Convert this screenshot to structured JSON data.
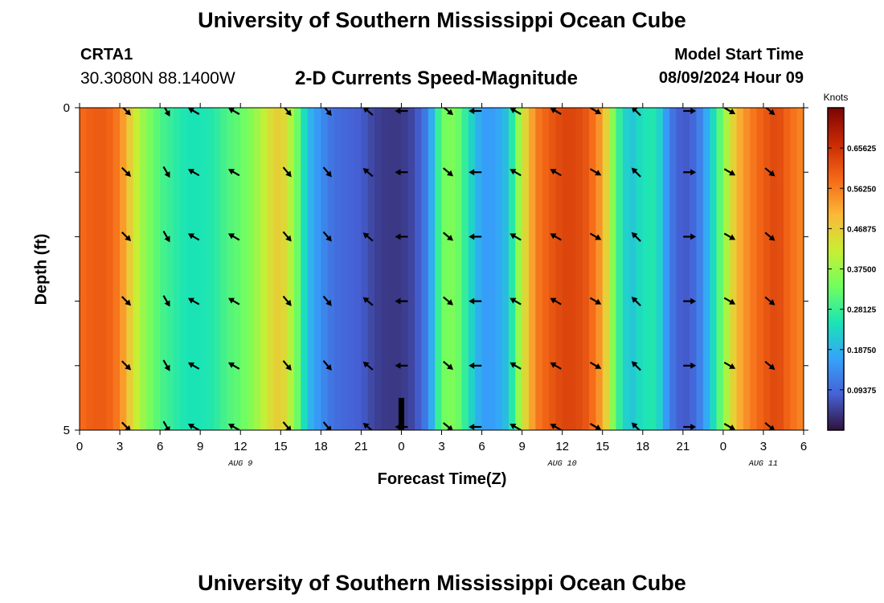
{
  "header": {
    "title_top": "University of Southern Mississippi Ocean Cube",
    "title_bottom": "University of Southern Mississippi Ocean Cube",
    "station": "CRTA1",
    "coords": "30.3080N  88.1400W",
    "model_start_label": "Model Start Time",
    "model_start_value": "08/09/2024 Hour 09"
  },
  "chart_data": {
    "type": "heatmap",
    "title": "2-D Currents Speed-Magnitude",
    "xlabel": "Forecast Time(Z)",
    "ylabel": "Depth (ft)",
    "xlim": [
      0,
      54
    ],
    "ylim": [
      0,
      5
    ],
    "y_tick_labels": [
      "0",
      "5"
    ],
    "x_tick_labels": [
      "0",
      "3",
      "6",
      "9",
      "12",
      "15",
      "18",
      "21",
      "0",
      "3",
      "6",
      "9",
      "12",
      "15",
      "18",
      "21",
      "0",
      "3",
      "6"
    ],
    "date_labels": [
      {
        "text": "AUG 9",
        "hour": 12
      },
      {
        "text": "AUG 10",
        "hour": 36
      },
      {
        "text": "AUG 11",
        "hour": 51
      }
    ],
    "current_time_marker_hour": 24,
    "colorbar": {
      "label": "Knots",
      "min": 0,
      "max": 0.75,
      "ticks": [
        "0.09375",
        "0.18750",
        "0.28125",
        "0.37500",
        "0.46875",
        "0.56250",
        "0.65625"
      ],
      "colors": [
        "#30123b",
        "#4661d6",
        "#35a3fb",
        "#1ae4b6",
        "#71fe5f",
        "#c7ef34",
        "#fbb938",
        "#f56918",
        "#c92a04",
        "#7a0403"
      ]
    },
    "speed_series": {
      "hours": [
        0,
        1,
        2,
        3,
        4,
        5,
        6,
        7,
        8,
        9,
        10,
        11,
        12,
        13,
        14,
        15,
        16,
        17,
        18,
        19,
        20,
        21,
        22,
        23,
        24,
        25,
        26,
        27,
        28,
        29,
        30,
        31,
        32,
        33,
        34,
        35,
        36,
        37,
        38,
        39,
        40,
        41,
        42,
        43,
        44,
        45,
        46,
        47,
        48,
        49,
        50,
        51,
        52,
        53,
        54
      ],
      "values_knots": [
        0.58,
        0.6,
        0.6,
        0.56,
        0.44,
        0.35,
        0.3,
        0.27,
        0.25,
        0.25,
        0.26,
        0.3,
        0.32,
        0.36,
        0.43,
        0.48,
        0.37,
        0.2,
        0.14,
        0.1,
        0.09,
        0.08,
        0.05,
        0.04,
        0.04,
        0.06,
        0.13,
        0.33,
        0.35,
        0.25,
        0.16,
        0.16,
        0.21,
        0.42,
        0.56,
        0.6,
        0.63,
        0.63,
        0.6,
        0.52,
        0.3,
        0.2,
        0.25,
        0.26,
        0.12,
        0.07,
        0.1,
        0.2,
        0.35,
        0.5,
        0.56,
        0.6,
        0.63,
        0.58,
        0.55
      ]
    },
    "arrow_rows_ft": [
      0.05,
      1,
      2,
      3,
      4,
      4.95
    ],
    "arrows": [
      {
        "hour": 3.5,
        "dir_deg": 135
      },
      {
        "hour": 6.5,
        "dir_deg": 150
      },
      {
        "hour": 8.5,
        "dir_deg": 300
      },
      {
        "hour": 11.5,
        "dir_deg": 300
      },
      {
        "hour": 15.5,
        "dir_deg": 140
      },
      {
        "hour": 18.5,
        "dir_deg": 140
      },
      {
        "hour": 21.5,
        "dir_deg": 310
      },
      {
        "hour": 24,
        "dir_deg": 270
      },
      {
        "hour": 27.5,
        "dir_deg": 130
      },
      {
        "hour": 29.5,
        "dir_deg": 270
      },
      {
        "hour": 32.5,
        "dir_deg": 300
      },
      {
        "hour": 35.5,
        "dir_deg": 300
      },
      {
        "hour": 38.5,
        "dir_deg": 120
      },
      {
        "hour": 41.5,
        "dir_deg": 315
      },
      {
        "hour": 45.5,
        "dir_deg": 90
      },
      {
        "hour": 48.5,
        "dir_deg": 120
      },
      {
        "hour": 51.5,
        "dir_deg": 130
      }
    ]
  }
}
